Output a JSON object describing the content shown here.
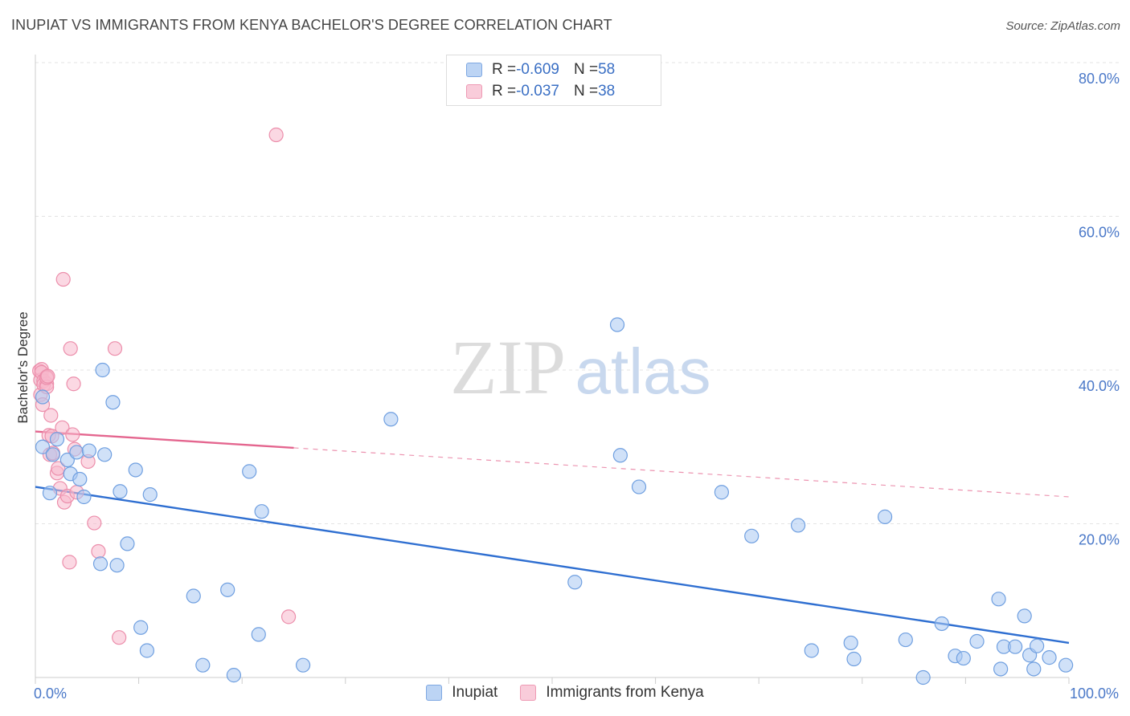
{
  "title": "INUPIAT VS IMMIGRANTS FROM KENYA BACHELOR'S DEGREE CORRELATION CHART",
  "source": "Source: ZipAtlas.com",
  "watermark": {
    "zip": "ZIP",
    "atlas": "atlas"
  },
  "legend": {
    "rows": [
      {
        "r_label": "R = ",
        "r_value": "-0.609",
        "n_label": "N = ",
        "n_value": "58"
      },
      {
        "r_label": "R = ",
        "r_value": "-0.037",
        "n_label": "N = ",
        "n_value": "38"
      }
    ]
  },
  "bottom_legend": [
    "Inupiat",
    "Immigrants from Kenya"
  ],
  "colors": {
    "blue_fill": "#a9c8f2",
    "blue_stroke": "#6f9fe0",
    "blue_line": "#2f6fd1",
    "pink_fill": "#f7b8cc",
    "pink_stroke": "#ec8eab",
    "pink_line": "#e4668f",
    "grid": "#e3e3e3",
    "axis": "#cccccc"
  },
  "chart_data": {
    "type": "scatter",
    "title": "INUPIAT VS IMMIGRANTS FROM KENYA BACHELOR'S DEGREE CORRELATION CHART",
    "xlabel": "",
    "ylabel": "Bachelor's Degree",
    "xlim": [
      0,
      100
    ],
    "ylim": [
      0,
      80
    ],
    "x_tick_labels": [
      "0.0%",
      "100.0%"
    ],
    "y_ticks": [
      20,
      40,
      60,
      80
    ],
    "y_tick_labels": [
      "20.0%",
      "40.0%",
      "60.0%",
      "80.0%"
    ],
    "legend_position": "top-center",
    "series": [
      {
        "name": "Inupiat",
        "R": -0.609,
        "N": 58,
        "trend": {
          "x0": 0,
          "y0": 24.8,
          "x1": 100,
          "y1": 4.5,
          "solid_to": 100
        },
        "points": [
          [
            0.7,
            36.5
          ],
          [
            0.7,
            30.0
          ],
          [
            1.4,
            24.0
          ],
          [
            1.7,
            29.0
          ],
          [
            2.1,
            31.0
          ],
          [
            3.1,
            28.3
          ],
          [
            3.4,
            26.5
          ],
          [
            4.0,
            29.3
          ],
          [
            4.3,
            25.8
          ],
          [
            4.7,
            23.5
          ],
          [
            5.2,
            29.5
          ],
          [
            6.3,
            14.8
          ],
          [
            6.5,
            40.0
          ],
          [
            6.7,
            29.0
          ],
          [
            7.5,
            35.8
          ],
          [
            7.9,
            14.6
          ],
          [
            8.2,
            24.2
          ],
          [
            8.9,
            17.4
          ],
          [
            9.7,
            27.0
          ],
          [
            10.2,
            6.5
          ],
          [
            10.8,
            3.5
          ],
          [
            11.1,
            23.8
          ],
          [
            15.3,
            10.6
          ],
          [
            16.2,
            1.6
          ],
          [
            18.6,
            11.4
          ],
          [
            19.2,
            0.3
          ],
          [
            20.7,
            26.8
          ],
          [
            21.6,
            5.6
          ],
          [
            21.9,
            21.6
          ],
          [
            25.9,
            1.6
          ],
          [
            34.4,
            33.6
          ],
          [
            52.2,
            12.4
          ],
          [
            56.3,
            45.9
          ],
          [
            56.6,
            28.9
          ],
          [
            58.4,
            24.8
          ],
          [
            66.4,
            24.1
          ],
          [
            69.3,
            18.4
          ],
          [
            73.8,
            19.8
          ],
          [
            75.1,
            3.5
          ],
          [
            78.9,
            4.5
          ],
          [
            79.2,
            2.4
          ],
          [
            82.2,
            20.9
          ],
          [
            84.2,
            4.9
          ],
          [
            85.9,
            0.0
          ],
          [
            87.7,
            7.0
          ],
          [
            89.0,
            2.8
          ],
          [
            89.8,
            2.5
          ],
          [
            91.1,
            4.7
          ],
          [
            93.2,
            10.2
          ],
          [
            93.4,
            1.1
          ],
          [
            93.7,
            4.0
          ],
          [
            94.8,
            4.0
          ],
          [
            95.7,
            8.0
          ],
          [
            96.2,
            2.9
          ],
          [
            96.6,
            1.1
          ],
          [
            96.9,
            4.1
          ],
          [
            98.1,
            2.6
          ],
          [
            99.7,
            1.6
          ]
        ]
      },
      {
        "name": "Immigrants from Kenya",
        "R": -0.037,
        "N": 38,
        "trend": {
          "x0": 0,
          "y0": 32.0,
          "x1": 100,
          "y1": 23.5,
          "solid_to": 25
        },
        "points": [
          [
            0.4,
            39.9
          ],
          [
            0.5,
            38.7
          ],
          [
            0.5,
            36.8
          ],
          [
            0.6,
            40.1
          ],
          [
            0.6,
            39.7
          ],
          [
            0.7,
            35.5
          ],
          [
            0.8,
            38.6
          ],
          [
            0.8,
            38.1
          ],
          [
            1.1,
            38.2
          ],
          [
            1.1,
            39.1
          ],
          [
            1.1,
            37.8
          ],
          [
            1.1,
            39.0
          ],
          [
            1.2,
            39.2
          ],
          [
            1.3,
            31.5
          ],
          [
            1.4,
            29.0
          ],
          [
            1.5,
            34.1
          ],
          [
            1.6,
            31.4
          ],
          [
            1.7,
            29.2
          ],
          [
            2.1,
            26.6
          ],
          [
            2.2,
            27.2
          ],
          [
            2.4,
            24.6
          ],
          [
            2.6,
            32.5
          ],
          [
            2.7,
            51.8
          ],
          [
            2.8,
            22.8
          ],
          [
            3.1,
            23.6
          ],
          [
            3.3,
            15.0
          ],
          [
            3.4,
            42.8
          ],
          [
            3.6,
            31.6
          ],
          [
            3.7,
            38.2
          ],
          [
            3.8,
            29.7
          ],
          [
            4.0,
            24.1
          ],
          [
            5.1,
            28.1
          ],
          [
            5.7,
            20.1
          ],
          [
            6.1,
            16.4
          ],
          [
            7.7,
            42.8
          ],
          [
            8.1,
            5.2
          ],
          [
            23.3,
            70.6
          ],
          [
            24.5,
            7.9
          ]
        ]
      }
    ]
  }
}
